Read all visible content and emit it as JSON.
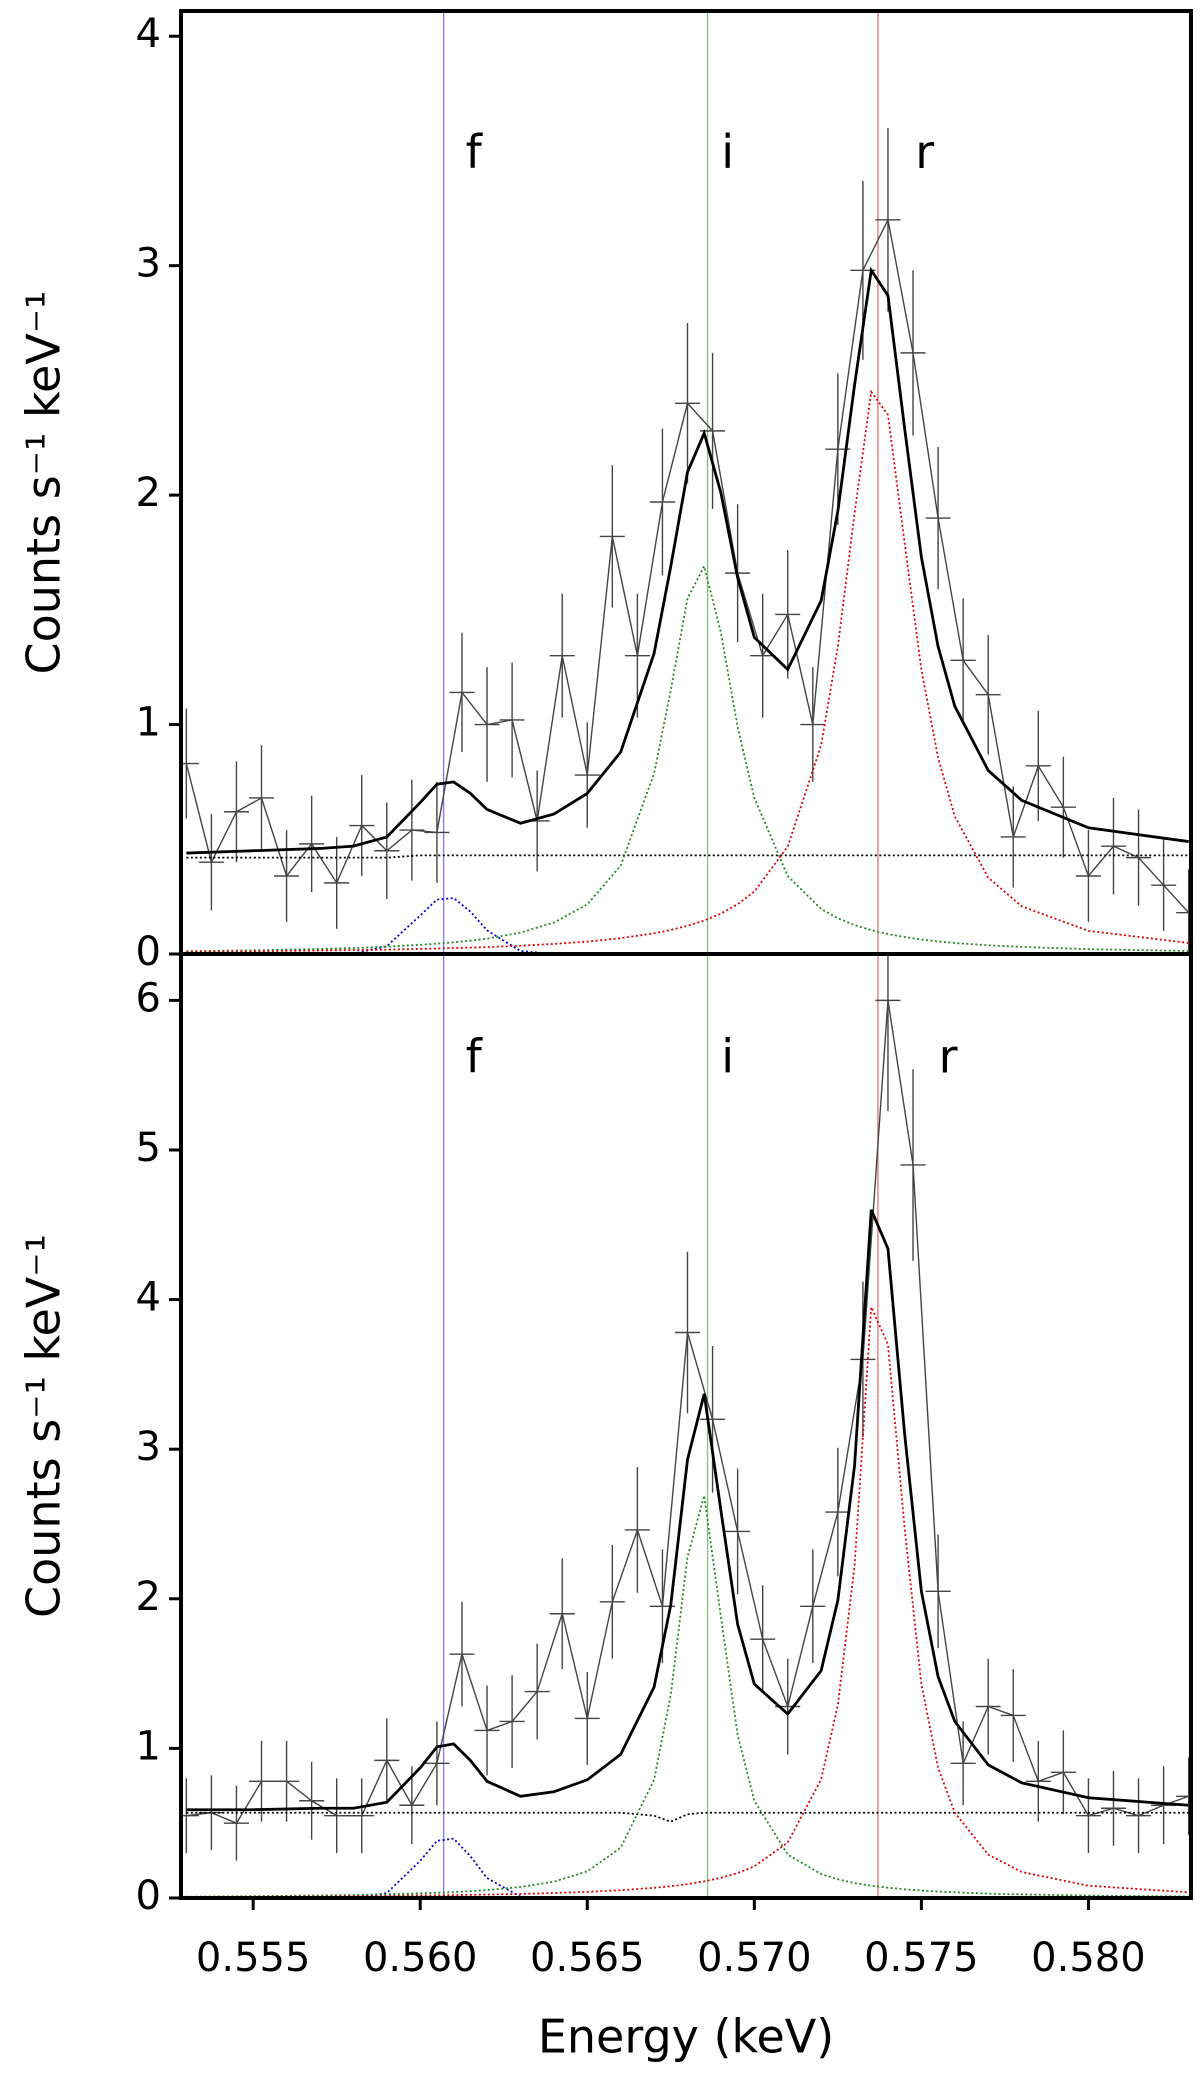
{
  "chart_data": [
    {
      "type": "line",
      "ylabel": "Counts s⁻¹ keV⁻¹",
      "xlim": [
        0.55284,
        0.58307
      ],
      "ylim": [
        0,
        4.11
      ],
      "yticks": [
        0,
        1,
        2,
        3,
        4
      ],
      "vlines": [
        {
          "x": 0.5607,
          "color": "#7777ff"
        },
        {
          "x": 0.5686,
          "color": "#77c477"
        },
        {
          "x": 0.5737,
          "color": "#e07070"
        }
      ],
      "annotations": [
        {
          "text": "f",
          "x": 0.5616,
          "y": 3.48
        },
        {
          "text": "i",
          "x": 0.5692,
          "y": 3.48
        },
        {
          "text": "r",
          "x": 0.5751,
          "y": 3.48
        }
      ],
      "x": [
        0.553,
        0.555,
        0.557,
        0.558,
        0.559,
        0.56,
        0.5605,
        0.561,
        0.5615,
        0.562,
        0.563,
        0.564,
        0.565,
        0.566,
        0.567,
        0.5675,
        0.568,
        0.5685,
        0.569,
        0.5695,
        0.57,
        0.571,
        0.572,
        0.5725,
        0.573,
        0.5735,
        0.574,
        0.5745,
        0.575,
        0.5755,
        0.576,
        0.577,
        0.578,
        0.58,
        0.583
      ],
      "series": [
        {
          "color": "#000000",
          "linestyle": "dotted",
          "values": [
            0.42,
            0.42,
            0.42,
            0.42,
            0.42,
            0.43,
            0.43,
            0.43,
            0.43,
            0.43,
            0.43,
            0.43,
            0.43,
            0.43,
            0.43,
            0.43,
            0.43,
            0.43,
            0.43,
            0.43,
            0.43,
            0.43,
            0.43,
            0.43,
            0.43,
            0.43,
            0.43,
            0.43,
            0.43,
            0.43,
            0.43,
            0.43,
            0.43,
            0.43,
            0.43
          ]
        },
        {
          "color": "#0000cc",
          "linestyle": "dotted",
          "values": [
            0,
            0,
            0,
            0.002,
            0.034,
            0.168,
            0.237,
            0.244,
            0.185,
            0.103,
            0.013,
            0,
            0,
            0,
            0,
            0,
            0,
            0,
            0,
            0,
            0,
            0,
            0,
            0,
            0,
            0,
            0,
            0,
            0,
            0,
            0,
            0,
            0,
            0,
            0
          ]
        },
        {
          "color": "#1f8a1f",
          "linestyle": "dotted",
          "values": [
            0.012,
            0.016,
            0.022,
            0.026,
            0.032,
            0.04,
            0.045,
            0.051,
            0.058,
            0.067,
            0.093,
            0.137,
            0.216,
            0.385,
            0.787,
            1.15,
            1.55,
            1.69,
            1.4,
            0.99,
            0.68,
            0.34,
            0.196,
            0.156,
            0.126,
            0.104,
            0.087,
            0.074,
            0.063,
            0.055,
            0.048,
            0.038,
            0.031,
            0.021,
            0.013
          ]
        },
        {
          "color": "#dd0000",
          "linestyle": "dotted",
          "values": [
            0.01,
            0.012,
            0.015,
            0.017,
            0.019,
            0.022,
            0.024,
            0.026,
            0.028,
            0.03,
            0.036,
            0.044,
            0.054,
            0.069,
            0.09,
            0.105,
            0.123,
            0.146,
            0.176,
            0.217,
            0.272,
            0.468,
            0.91,
            1.34,
            1.92,
            2.45,
            2.35,
            1.79,
            1.24,
            0.855,
            0.6,
            0.333,
            0.208,
            0.101,
            0.048
          ]
        },
        {
          "color": "#000000",
          "linestyle": "solid",
          "values": [
            0.44,
            0.45,
            0.46,
            0.47,
            0.51,
            0.66,
            0.74,
            0.75,
            0.7,
            0.63,
            0.57,
            0.61,
            0.7,
            0.88,
            1.31,
            1.69,
            2.1,
            2.27,
            2.01,
            1.64,
            1.38,
            1.24,
            1.54,
            1.93,
            2.48,
            2.98,
            2.87,
            2.29,
            1.73,
            1.34,
            1.08,
            0.8,
            0.67,
            0.55,
            0.49
          ]
        }
      ],
      "data": {
        "color": "#444444",
        "xerr": 0.000375,
        "x": [
          0.553,
          0.55375,
          0.5545,
          0.55525,
          0.556,
          0.55675,
          0.5575,
          0.55825,
          0.559,
          0.55975,
          0.5605,
          0.56125,
          0.562,
          0.56275,
          0.5635,
          0.56425,
          0.565,
          0.56575,
          0.5665,
          0.56725,
          0.568,
          0.56875,
          0.5695,
          0.57025,
          0.571,
          0.57175,
          0.5725,
          0.57325,
          0.574,
          0.57475,
          0.5755,
          0.57625,
          0.577,
          0.57775,
          0.5785,
          0.57925,
          0.58,
          0.58075,
          0.5815,
          0.58225,
          0.583
        ],
        "values": [
          0.83,
          0.4,
          0.62,
          0.68,
          0.34,
          0.48,
          0.31,
          0.56,
          0.45,
          0.54,
          0.53,
          1.14,
          1.0,
          1.02,
          0.58,
          1.3,
          0.78,
          1.82,
          1.3,
          1.97,
          2.4,
          2.28,
          1.66,
          1.3,
          1.48,
          1.0,
          2.2,
          2.98,
          3.2,
          2.62,
          1.9,
          1.28,
          1.13,
          0.51,
          0.82,
          0.64,
          0.34,
          0.47,
          0.42,
          0.3,
          0.18
        ],
        "errors": [
          0.24,
          0.21,
          0.22,
          0.23,
          0.2,
          0.21,
          0.2,
          0.22,
          0.21,
          0.22,
          0.22,
          0.26,
          0.25,
          0.25,
          0.22,
          0.27,
          0.23,
          0.31,
          0.27,
          0.32,
          0.35,
          0.34,
          0.3,
          0.27,
          0.28,
          0.25,
          0.33,
          0.39,
          0.4,
          0.36,
          0.31,
          0.27,
          0.26,
          0.22,
          0.24,
          0.22,
          0.2,
          0.21,
          0.21,
          0.2,
          0.19
        ]
      }
    },
    {
      "type": "line",
      "ylabel": "Counts s⁻¹ keV⁻¹",
      "xlabel": "Energy (keV)",
      "xlim": [
        0.55284,
        0.58307
      ],
      "ylim": [
        0,
        6.31
      ],
      "yticks": [
        0,
        1,
        2,
        3,
        4,
        5,
        6
      ],
      "xticks": [
        0.555,
        {
          "value": 0.56,
          "label": "0.560"
        },
        0.565,
        {
          "value": 0.57,
          "label": "0.570"
        },
        0.575,
        {
          "value": 0.58,
          "label": "0.580"
        }
      ],
      "vlines": [
        {
          "x": 0.5607,
          "color": "#7777ff"
        },
        {
          "x": 0.5686,
          "color": "#77c477"
        },
        {
          "x": 0.5737,
          "color": "#e07070"
        }
      ],
      "annotations": [
        {
          "text": "f",
          "x": 0.5616,
          "y": 5.6
        },
        {
          "text": "i",
          "x": 0.5692,
          "y": 5.6
        },
        {
          "text": "r",
          "x": 0.5758,
          "y": 5.6
        }
      ],
      "x": [
        0.553,
        0.555,
        0.557,
        0.558,
        0.559,
        0.56,
        0.5605,
        0.561,
        0.5615,
        0.562,
        0.563,
        0.564,
        0.565,
        0.566,
        0.567,
        0.5675,
        0.568,
        0.5685,
        0.569,
        0.5695,
        0.57,
        0.571,
        0.572,
        0.5725,
        0.573,
        0.5735,
        0.574,
        0.5745,
        0.575,
        0.5755,
        0.576,
        0.577,
        0.578,
        0.58,
        0.583
      ],
      "series": [
        {
          "color": "#000000",
          "linestyle": "dotted",
          "values": [
            0.57,
            0.57,
            0.57,
            0.57,
            0.57,
            0.57,
            0.57,
            0.57,
            0.57,
            0.57,
            0.57,
            0.57,
            0.57,
            0.57,
            0.55,
            0.51,
            0.56,
            0.57,
            0.57,
            0.57,
            0.57,
            0.57,
            0.57,
            0.57,
            0.57,
            0.57,
            0.57,
            0.57,
            0.57,
            0.57,
            0.57,
            0.57,
            0.57,
            0.57,
            0.57
          ]
        },
        {
          "color": "#0000cc",
          "linestyle": "dotted",
          "values": [
            0,
            0,
            0,
            0.001,
            0.033,
            0.249,
            0.382,
            0.397,
            0.28,
            0.133,
            0.009,
            0,
            0,
            0,
            0,
            0,
            0,
            0,
            0,
            0,
            0,
            0,
            0,
            0,
            0,
            0,
            0,
            0,
            0,
            0,
            0,
            0,
            0,
            0,
            0
          ]
        },
        {
          "color": "#1f8a1f",
          "linestyle": "dotted",
          "values": [
            0.009,
            0.012,
            0.017,
            0.02,
            0.025,
            0.031,
            0.035,
            0.04,
            0.045,
            0.053,
            0.074,
            0.109,
            0.178,
            0.336,
            0.79,
            1.36,
            2.28,
            2.69,
            1.88,
            1.09,
            0.65,
            0.29,
            0.16,
            0.125,
            0.1,
            0.082,
            0.069,
            0.058,
            0.05,
            0.043,
            0.038,
            0.029,
            0.024,
            0.016,
            0.01
          ]
        },
        {
          "color": "#dd0000",
          "linestyle": "dotted",
          "values": [
            0.007,
            0.009,
            0.011,
            0.013,
            0.015,
            0.017,
            0.018,
            0.02,
            0.021,
            0.023,
            0.027,
            0.033,
            0.041,
            0.052,
            0.068,
            0.079,
            0.093,
            0.111,
            0.135,
            0.167,
            0.211,
            0.371,
            0.794,
            1.29,
            2.22,
            3.95,
            3.7,
            2.47,
            1.43,
            0.87,
            0.57,
            0.29,
            0.174,
            0.082,
            0.038
          ]
        },
        {
          "color": "#000000",
          "linestyle": "solid",
          "values": [
            0.59,
            0.59,
            0.6,
            0.6,
            0.64,
            0.87,
            1.01,
            1.03,
            0.92,
            0.78,
            0.68,
            0.71,
            0.79,
            0.96,
            1.41,
            1.96,
            2.93,
            3.37,
            2.59,
            1.83,
            1.43,
            1.23,
            1.52,
            1.99,
            2.89,
            4.6,
            4.34,
            3.1,
            2.05,
            1.48,
            1.18,
            0.89,
            0.77,
            0.67,
            0.62
          ]
        }
      ],
      "data": {
        "color": "#444444",
        "xerr": 0.000375,
        "x": [
          0.553,
          0.55375,
          0.5545,
          0.55525,
          0.556,
          0.55675,
          0.5575,
          0.55825,
          0.559,
          0.55975,
          0.5605,
          0.56125,
          0.562,
          0.56275,
          0.5635,
          0.56425,
          0.565,
          0.56575,
          0.5665,
          0.56725,
          0.568,
          0.56875,
          0.5695,
          0.57025,
          0.571,
          0.57175,
          0.5725,
          0.57325,
          0.574,
          0.57475,
          0.5755,
          0.57625,
          0.577,
          0.57775,
          0.5785,
          0.57925,
          0.58,
          0.58075,
          0.5815,
          0.58225,
          0.583
        ],
        "values": [
          0.55,
          0.57,
          0.5,
          0.78,
          0.78,
          0.65,
          0.55,
          0.55,
          0.92,
          0.62,
          0.9,
          1.63,
          1.12,
          1.18,
          1.38,
          1.9,
          1.2,
          1.98,
          2.46,
          1.95,
          3.78,
          3.2,
          2.45,
          1.73,
          1.28,
          1.95,
          2.58,
          3.6,
          6.0,
          4.9,
          2.05,
          0.9,
          1.28,
          1.22,
          0.78,
          0.84,
          0.55,
          0.6,
          0.55,
          0.62,
          0.68
        ],
        "errors": [
          0.25,
          0.25,
          0.25,
          0.27,
          0.27,
          0.26,
          0.25,
          0.25,
          0.28,
          0.26,
          0.28,
          0.35,
          0.3,
          0.31,
          0.32,
          0.37,
          0.31,
          0.38,
          0.42,
          0.38,
          0.54,
          0.49,
          0.42,
          0.36,
          0.32,
          0.38,
          0.43,
          0.52,
          0.74,
          0.64,
          0.38,
          0.28,
          0.32,
          0.31,
          0.27,
          0.28,
          0.25,
          0.25,
          0.25,
          0.26,
          0.26
        ]
      }
    }
  ]
}
